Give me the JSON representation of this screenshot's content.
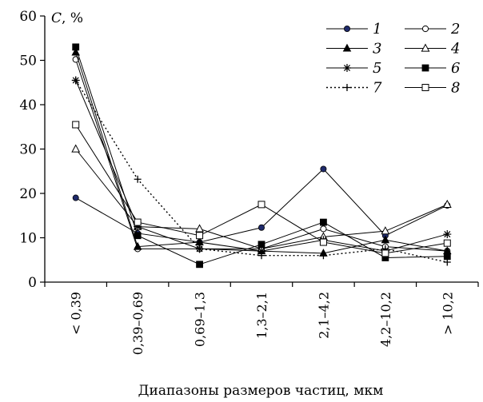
{
  "chart_data": {
    "type": "line",
    "title": "",
    "xlabel": "Диапазоны размеров частиц, мкм",
    "ylabel_var": "C",
    "ylabel_unit": ", %",
    "ylim": [
      0,
      60
    ],
    "yticks": [
      0,
      10,
      20,
      30,
      40,
      50,
      60
    ],
    "grid": false,
    "legend_position": "top-right",
    "categories": [
      "< 0,39",
      "0,39–0,69",
      "0,69–1,3",
      "1,3–2,1",
      "2,1–4,2",
      "4,2–10,2",
      "> 10,2"
    ],
    "series": [
      {
        "name": "1",
        "marker": "filled-circle",
        "line": "solid",
        "values": [
          19,
          11,
          9,
          12.3,
          25.5,
          10.5,
          17.3
        ]
      },
      {
        "name": "2",
        "marker": "open-circle",
        "line": "solid",
        "values": [
          50.2,
          7.5,
          7.5,
          7.5,
          12,
          8,
          7
        ]
      },
      {
        "name": "3",
        "marker": "filled-triangle",
        "line": "solid",
        "values": [
          51.8,
          8,
          9,
          7,
          6.5,
          9.5,
          7
        ]
      },
      {
        "name": "4",
        "marker": "open-triangle",
        "line": "solid",
        "values": [
          30,
          12.5,
          12,
          7.5,
          10.2,
          11.5,
          17.5
        ]
      },
      {
        "name": "5",
        "marker": "asterisk",
        "line": "solid",
        "values": [
          45.5,
          12.5,
          7.5,
          7,
          9.5,
          7,
          10.8
        ]
      },
      {
        "name": "6",
        "marker": "filled-square",
        "line": "solid",
        "values": [
          53,
          10.5,
          4,
          8.5,
          13.5,
          5.5,
          5.8
        ]
      },
      {
        "name": "7",
        "marker": "plus",
        "line": "dotted",
        "values": [
          45.5,
          23.2,
          7.5,
          6,
          6,
          7.5,
          4.5
        ]
      },
      {
        "name": "8",
        "marker": "open-square",
        "line": "solid",
        "values": [
          35.5,
          13.5,
          10.5,
          17.5,
          9,
          6.5,
          8.8
        ]
      }
    ]
  }
}
